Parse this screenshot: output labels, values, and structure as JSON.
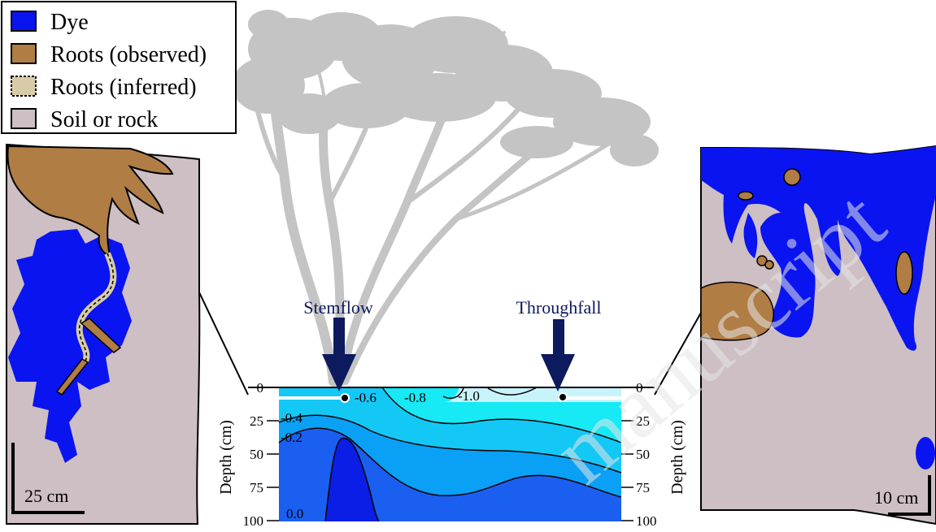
{
  "legend": {
    "items": [
      {
        "label": "Dye",
        "color": "#0a14f0"
      },
      {
        "label": "Roots (observed)",
        "color": "#b07d45"
      },
      {
        "label": "Roots (inferred)",
        "color": "#d8cca8"
      },
      {
        "label": "Soil or rock",
        "color": "#cdbfc4"
      }
    ]
  },
  "left_panel": {
    "scale_label": "25 cm"
  },
  "right_panel": {
    "scale_label": "10 cm"
  },
  "arrows": {
    "stemflow": "Stemflow",
    "throughfall": "Throughfall"
  },
  "profile": {
    "axis_label_left": "Depth (cm)",
    "axis_label_right": "Depth (cm)",
    "depth_ticks": [
      "0",
      "25",
      "50",
      "75",
      "100"
    ],
    "contour_labels": [
      "-0.6",
      "-0.8",
      "-1.0",
      "-0.4",
      "-0.2",
      "0.0"
    ]
  },
  "watermark": "manuscript",
  "colors": {
    "dye": "#0a14f0",
    "arrow": "#0d1a5e",
    "tree": "#c4c4c4",
    "contour_fill": [
      "#0a1ee6",
      "#1a5ff0",
      "#0aa0f5",
      "#14c8f5",
      "#17e9f5",
      "#c8f3fa"
    ]
  }
}
